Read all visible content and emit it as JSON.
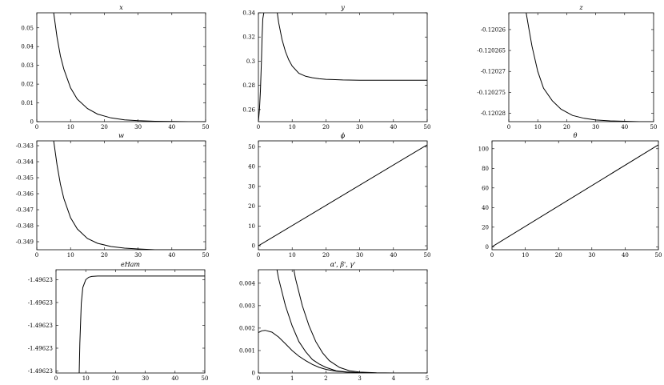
{
  "chart_data": [
    {
      "type": "line",
      "title": "x",
      "xlim": [
        0,
        50
      ],
      "ylim": [
        0,
        0.058
      ],
      "xticks": [
        0,
        10,
        20,
        30,
        40,
        50
      ],
      "xtick_labels": [
        "0",
        "10",
        "20",
        "30",
        "40",
        "50"
      ],
      "yticks": [
        0,
        0.01,
        0.02,
        0.03,
        0.04,
        0.05
      ],
      "ytick_labels": [
        "0",
        "0.01",
        "0.02",
        "0.03",
        "0.04",
        "0.05"
      ],
      "series": [
        {
          "x": [
            5,
            6,
            7,
            8,
            10,
            12,
            15,
            18,
            22,
            26,
            30,
            35,
            40,
            45,
            50
          ],
          "y": [
            0.058,
            0.045,
            0.035,
            0.028,
            0.018,
            0.012,
            0.007,
            0.004,
            0.002,
            0.001,
            0.0005,
            0.0002,
            0.0001,
            0,
            0
          ]
        }
      ]
    },
    {
      "type": "line",
      "title": "y",
      "xlim": [
        0,
        50
      ],
      "ylim": [
        0.25,
        0.34
      ],
      "xticks": [
        0,
        10,
        20,
        30,
        40,
        50
      ],
      "xtick_labels": [
        "0",
        "10",
        "20",
        "30",
        "40",
        "50"
      ],
      "yticks": [
        0.26,
        0.28,
        0.3,
        0.32,
        0.34
      ],
      "ytick_labels": [
        "0.26",
        "0.28",
        "0.3",
        "0.32",
        "0.34"
      ],
      "series": [
        {
          "x": [
            0,
            0.3,
            0.6,
            0.9,
            1.1,
            1.3,
            1.6
          ],
          "y": [
            0.25,
            0.26,
            0.275,
            0.3,
            0.32,
            0.335,
            0.34
          ]
        },
        {
          "x": [
            5.6,
            6,
            7,
            8,
            9,
            10,
            12,
            14,
            16,
            18,
            20,
            22,
            25,
            30,
            35,
            40,
            45,
            50
          ],
          "y": [
            0.34,
            0.332,
            0.318,
            0.308,
            0.301,
            0.296,
            0.29,
            0.2875,
            0.2863,
            0.2855,
            0.285,
            0.2848,
            0.2845,
            0.2843,
            0.2843,
            0.2843,
            0.2843,
            0.2843
          ]
        }
      ]
    },
    {
      "type": "line",
      "title": "z",
      "xlim": [
        0,
        50
      ],
      "ylim": [
        -0.120282,
        -0.120256
      ],
      "xticks": [
        0,
        10,
        20,
        30,
        40,
        50
      ],
      "xtick_labels": [
        "0",
        "10",
        "20",
        "30",
        "40",
        "50"
      ],
      "yticks": [
        -0.12026,
        -0.120265,
        -0.12027,
        -0.120275,
        -0.12028
      ],
      "ytick_labels": [
        "-0.12026",
        "-0.120265",
        "-0.12027",
        "-0.120275",
        "-0.12028"
      ],
      "series": [
        {
          "x": [
            6,
            7,
            8,
            10,
            12,
            15,
            18,
            22,
            26,
            30,
            35,
            40,
            45,
            50
          ],
          "y": [
            -0.120256,
            -0.12026,
            -0.120264,
            -0.12027,
            -0.120274,
            -0.120277,
            -0.120279,
            -0.1202805,
            -0.1202812,
            -0.1202816,
            -0.1202818,
            -0.1202819,
            -0.120282,
            -0.120282
          ]
        }
      ]
    },
    {
      "type": "line",
      "title": "w",
      "xlim": [
        0,
        50
      ],
      "ylim": [
        -0.3495,
        -0.3427
      ],
      "xticks": [
        0,
        10,
        20,
        30,
        40,
        50
      ],
      "xtick_labels": [
        "0",
        "10",
        "20",
        "30",
        "40",
        "50"
      ],
      "yticks": [
        -0.343,
        -0.344,
        -0.345,
        -0.346,
        -0.347,
        -0.348,
        -0.349
      ],
      "ytick_labels": [
        "-0.343",
        "-0.344",
        "-0.345",
        "-0.346",
        "-0.347",
        "-0.348",
        "-0.349"
      ],
      "series": [
        {
          "x": [
            5,
            6,
            7,
            8,
            10,
            12,
            15,
            18,
            22,
            26,
            30,
            35,
            40,
            45,
            50
          ],
          "y": [
            -0.3427,
            -0.3442,
            -0.3454,
            -0.3463,
            -0.3475,
            -0.3482,
            -0.3488,
            -0.3491,
            -0.3493,
            -0.3494,
            -0.34945,
            -0.3495,
            -0.3495,
            -0.3495,
            -0.3495
          ]
        }
      ]
    },
    {
      "type": "line",
      "title": "ϕ",
      "xlim": [
        0,
        50
      ],
      "ylim": [
        -2,
        53
      ],
      "xticks": [
        0,
        10,
        20,
        30,
        40,
        50
      ],
      "xtick_labels": [
        "0",
        "10",
        "20",
        "30",
        "40",
        "50"
      ],
      "yticks": [
        0,
        10,
        20,
        30,
        40,
        50
      ],
      "ytick_labels": [
        "0",
        "10",
        "20",
        "30",
        "40",
        "50"
      ],
      "series": [
        {
          "x": [
            0,
            50
          ],
          "y": [
            0,
            51
          ]
        }
      ]
    },
    {
      "type": "line",
      "title": "θ",
      "xlim": [
        0,
        50
      ],
      "ylim": [
        -3,
        108
      ],
      "xticks": [
        0,
        10,
        20,
        30,
        40,
        50
      ],
      "xtick_labels": [
        "0",
        "10",
        "20",
        "30",
        "40",
        "50"
      ],
      "yticks": [
        0,
        20,
        40,
        60,
        80,
        100
      ],
      "ytick_labels": [
        "0",
        "20",
        "40",
        "60",
        "80",
        "100"
      ],
      "series": [
        {
          "x": [
            0,
            50
          ],
          "y": [
            0,
            104
          ]
        }
      ]
    },
    {
      "type": "line",
      "title": "eHam",
      "xlim": [
        0,
        50
      ],
      "ylim": [
        0,
        5.2
      ],
      "xticks": [
        0,
        10,
        20,
        30,
        40,
        50
      ],
      "xtick_labels": [
        "0",
        "10",
        "20",
        "30",
        "40",
        "50"
      ],
      "yticks": [
        0.1,
        1.25,
        2.4,
        3.55,
        4.7
      ],
      "ytick_labels": [
        "-1.49623",
        "-1.49623",
        "-1.49623",
        "-1.49623",
        "-1.49623"
      ],
      "series": [
        {
          "x": [
            7.8,
            8,
            8.5,
            9,
            10,
            11,
            12,
            14,
            16,
            20,
            30,
            40,
            50
          ],
          "y": [
            0,
            1.5,
            3.5,
            4.3,
            4.7,
            4.82,
            4.86,
            4.88,
            4.88,
            4.88,
            4.88,
            4.88,
            4.88
          ]
        }
      ]
    },
    {
      "type": "line",
      "title": "α', β', γ'",
      "xlim": [
        0,
        5
      ],
      "ylim": [
        0,
        0.0046
      ],
      "xticks": [
        0,
        1,
        2,
        3,
        4,
        5
      ],
      "xtick_labels": [
        "0",
        "1",
        "2",
        "3",
        "4",
        "5"
      ],
      "yticks": [
        0,
        0.001,
        0.002,
        0.003,
        0.004
      ],
      "ytick_labels": [
        "0",
        "0.001",
        "0.002",
        "0.003",
        "0.004"
      ],
      "series": [
        {
          "x": [
            0,
            0.1,
            0.2,
            0.4,
            0.6,
            0.8,
            1,
            1.2,
            1.4,
            1.6,
            1.8,
            2,
            2.3,
            2.6,
            3,
            3.5,
            4,
            5
          ],
          "y": [
            0.0018,
            0.00188,
            0.0019,
            0.00182,
            0.0016,
            0.0013,
            0.001,
            0.00075,
            0.00055,
            0.00038,
            0.00025,
            0.00016,
            8e-05,
            4e-05,
            1e-05,
            0,
            0,
            0
          ]
        },
        {
          "x": [
            0.55,
            0.6,
            0.8,
            1,
            1.2,
            1.4,
            1.6,
            1.8,
            2,
            2.3,
            2.6,
            3,
            3.5,
            4,
            5
          ],
          "y": [
            0.0046,
            0.0042,
            0.003,
            0.0021,
            0.0014,
            0.00095,
            0.0006,
            0.0004,
            0.00025,
            0.0001,
            5e-05,
            1e-05,
            0,
            0,
            0
          ]
        },
        {
          "x": [
            1.05,
            1.1,
            1.3,
            1.5,
            1.7,
            1.9,
            2.1,
            2.4,
            2.7,
            3,
            3.5,
            4,
            5
          ],
          "y": [
            0.0046,
            0.0042,
            0.003,
            0.0021,
            0.0014,
            0.0009,
            0.00055,
            0.00025,
            0.0001,
            4e-05,
            1e-05,
            0,
            0
          ]
        }
      ]
    }
  ]
}
